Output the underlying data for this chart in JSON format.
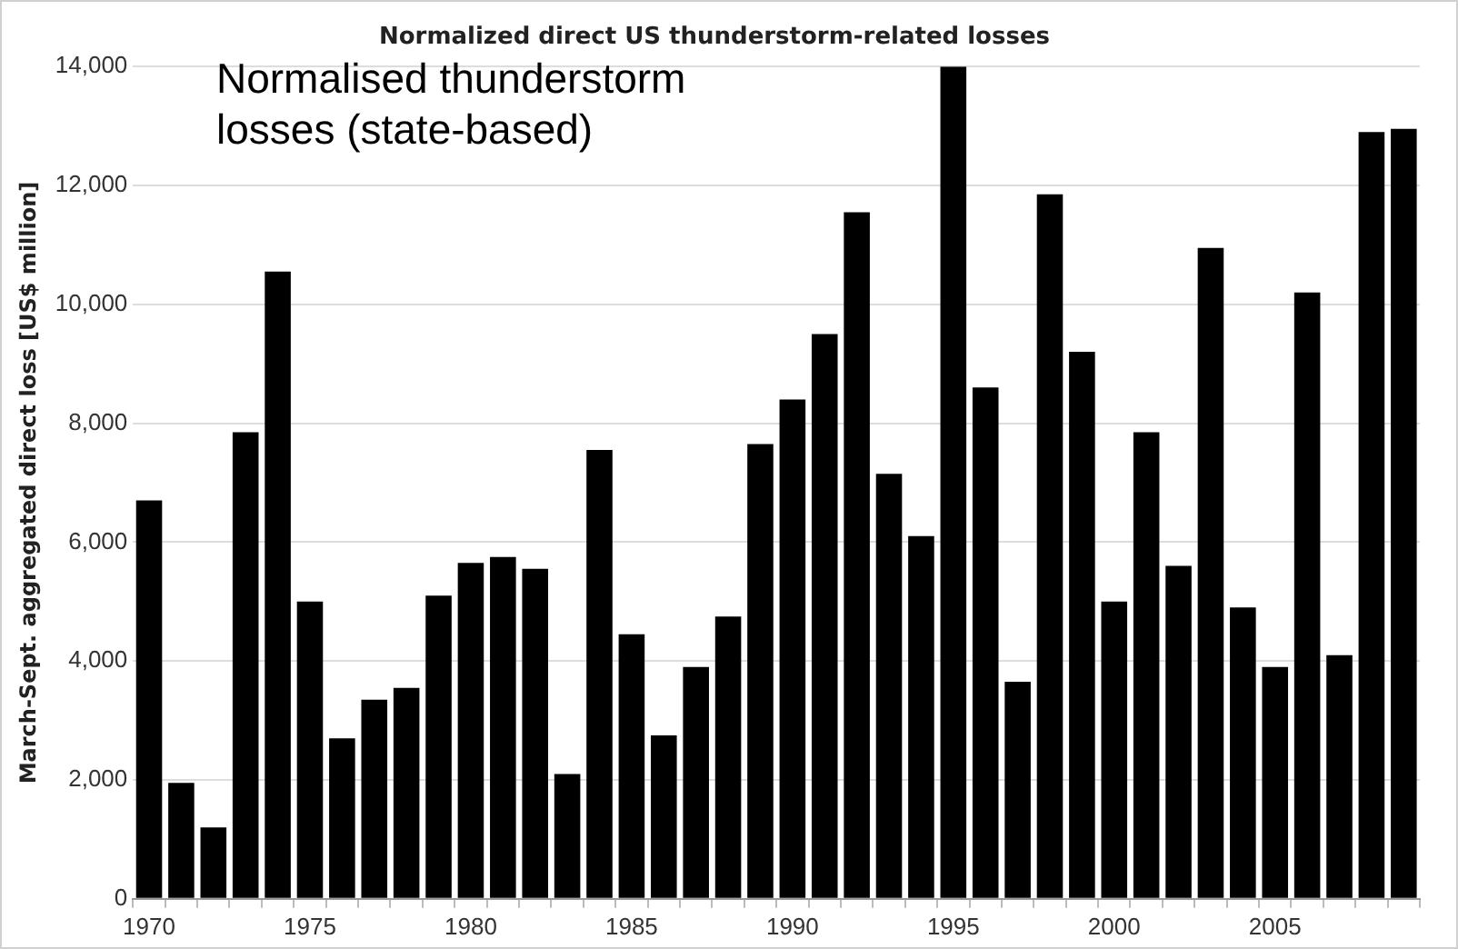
{
  "chart_data": {
    "type": "bar",
    "title": "Normalized direct US thunderstorm-related losses",
    "ylabel": "March-Sept. aggregated direct loss [US$ million]",
    "annotations": [
      "Normalised thunderstorm losses (state-based)"
    ],
    "categories": [
      "1970",
      null,
      null,
      null,
      null,
      "1975",
      null,
      null,
      null,
      null,
      "1980",
      null,
      null,
      null,
      null,
      "1985",
      null,
      null,
      null,
      null,
      "1990",
      null,
      null,
      null,
      null,
      "1995",
      null,
      null,
      null,
      null,
      "2000",
      null,
      null,
      null,
      null,
      "2005",
      null,
      null,
      null,
      null
    ],
    "values": [
      6700,
      1950,
      1200,
      7850,
      10550,
      5000,
      2700,
      3350,
      3550,
      5100,
      5650,
      5750,
      5550,
      2100,
      7550,
      4450,
      2750,
      3900,
      4750,
      7650,
      8400,
      9500,
      11550,
      7150,
      6100,
      14000,
      8600,
      3650,
      11850,
      9200,
      5000,
      7850,
      5600,
      10950,
      4900,
      3900,
      10200,
      4100,
      12900,
      12950
    ],
    "color": "#000000",
    "ylim": [
      0,
      14000
    ],
    "yticks": [
      0,
      {
        "value": 2000,
        "label": "2,000"
      },
      {
        "value": 4000,
        "label": "4,000"
      },
      {
        "value": 6000,
        "label": "6,000"
      },
      {
        "value": 8000,
        "label": "8,000"
      },
      {
        "value": 10000,
        "label": "10,000"
      },
      {
        "value": 12000,
        "label": "12,000"
      },
      {
        "value": 14000,
        "label": "14,000"
      }
    ],
    "grid": "y"
  }
}
